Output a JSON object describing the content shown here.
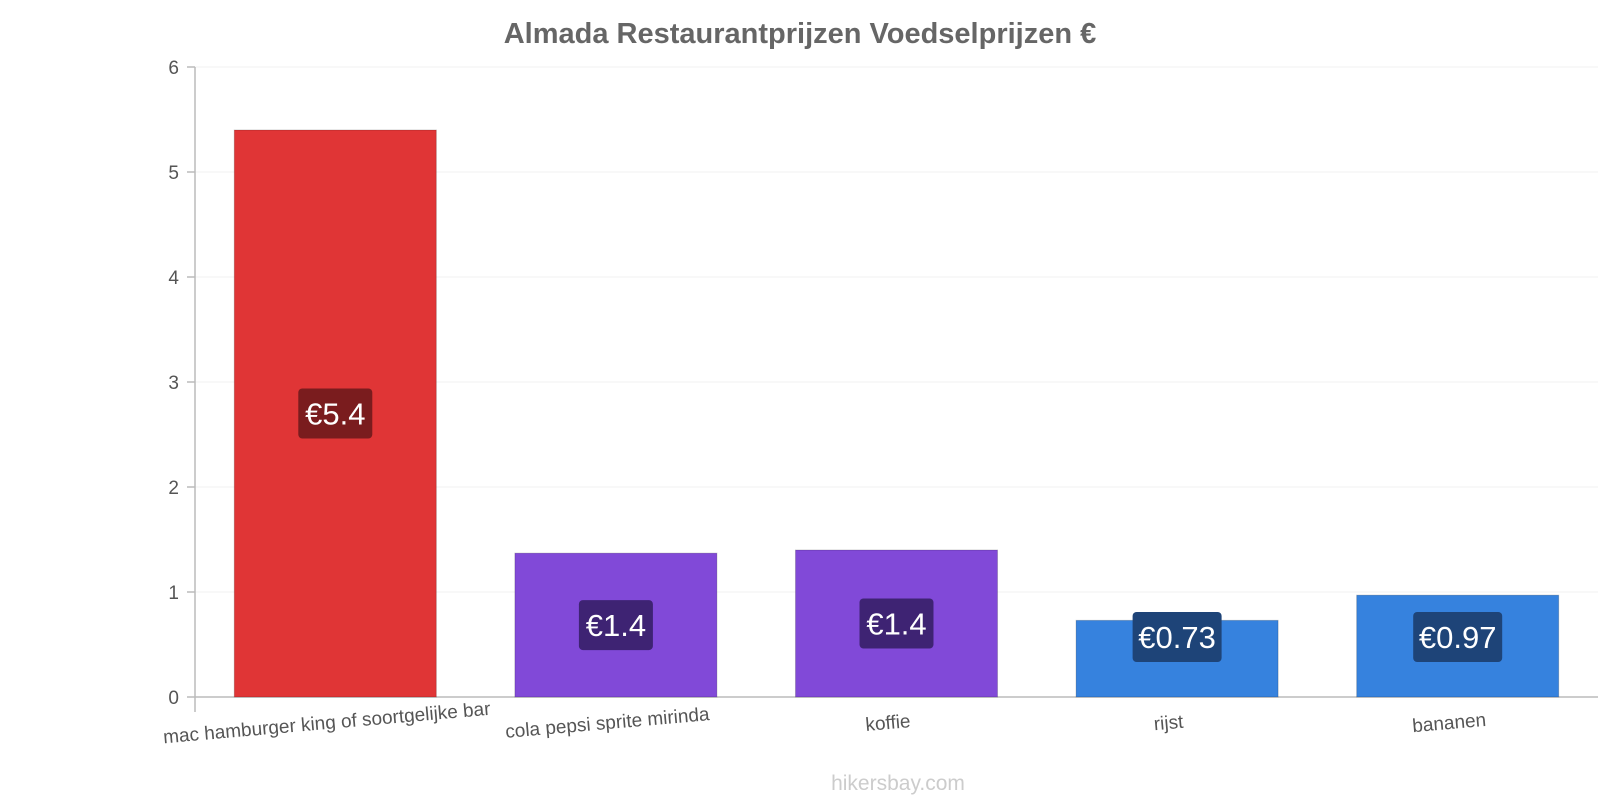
{
  "chart_data": {
    "type": "bar",
    "title": "Almada Restaurantprijzen Voedselprijzen €",
    "categories": [
      "mac hamburger king of soortgelijke bar",
      "cola pepsi sprite mirinda",
      "koffie",
      "rijst",
      "bananen"
    ],
    "values": [
      5.4,
      1.37,
      1.4,
      0.73,
      0.97
    ],
    "value_labels": [
      "€5.4",
      "€1.4",
      "€1.4",
      "€0.73",
      "€0.97"
    ],
    "bar_colors": [
      "#e03536",
      "#8149d8",
      "#8149d8",
      "#3682de",
      "#3682de"
    ],
    "label_bg_colors": [
      "#7a1c1e",
      "#3e2373",
      "#3e2373",
      "#1e4478",
      "#1e4478"
    ],
    "ylim": [
      0,
      6
    ],
    "yticks": [
      0,
      1,
      2,
      3,
      4,
      5,
      6
    ],
    "xlabel": "",
    "ylabel": "",
    "grid": true
  },
  "watermark": "hikersbay.com"
}
